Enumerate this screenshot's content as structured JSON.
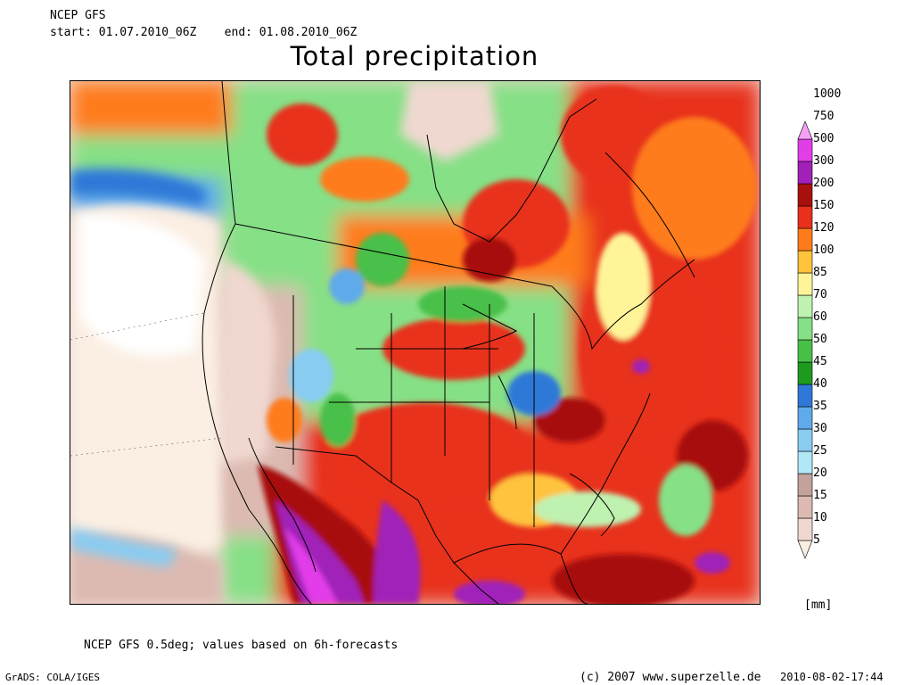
{
  "header": {
    "model": "NCEP GFS",
    "period": "start: 01.07.2010_06Z    end: 01.08.2010_06Z"
  },
  "title": "Total precipitation",
  "legend": {
    "unit": "[mm]",
    "levels": [
      "5",
      "10",
      "15",
      "20",
      "25",
      "30",
      "35",
      "40",
      "45",
      "50",
      "60",
      "70",
      "85",
      "100",
      "120",
      "150",
      "200",
      "300",
      "500",
      "750",
      "1000"
    ],
    "colors": [
      "#fbefe3",
      "#f0d8d0",
      "#dcbab2",
      "#c2a29a",
      "#b0e8f8",
      "#88ccf2",
      "#5eaaea",
      "#2f78d8",
      "#1e9a1e",
      "#48c048",
      "#86e086",
      "#bff2b0",
      "#fff598",
      "#ffc33c",
      "#ff7c1c",
      "#e8301c",
      "#a8100e",
      "#a020b8",
      "#e23ee8",
      "#f4a0f4"
    ]
  },
  "footer": {
    "note": "NCEP GFS 0.5deg; values based on 6h-forecasts",
    "software": "GrADS: COLA/IGES",
    "copyright": "(c) 2007 www.superzelle.de",
    "timestamp": "2010-08-02-17:44"
  }
}
